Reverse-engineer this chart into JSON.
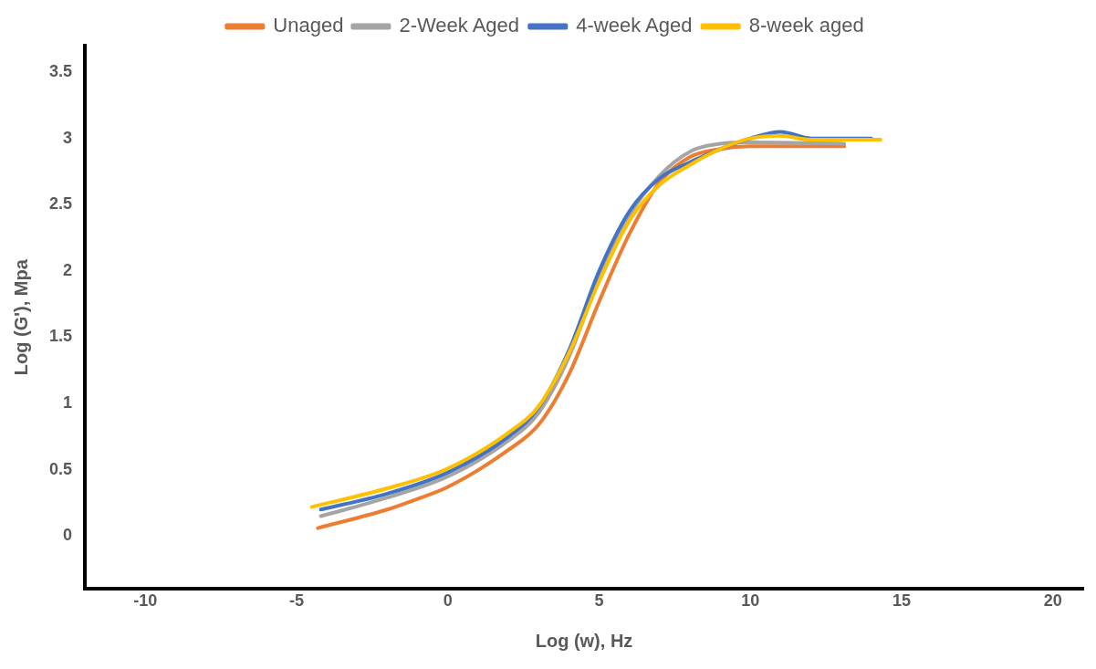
{
  "chart_data": {
    "type": "line",
    "xlabel": "Log (w), Hz",
    "ylabel": "Log (G'), Mpa",
    "legend": "top",
    "grid": false,
    "marker": "none",
    "line_style": "solid",
    "xlim": [
      -12,
      21
    ],
    "ylim": [
      -0.4,
      3.7
    ],
    "xticks": [
      -10,
      -5,
      0,
      5,
      10,
      15,
      20
    ],
    "yticks": [
      0,
      0.5,
      1,
      1.5,
      2,
      2.5,
      3,
      3.5
    ],
    "series": [
      {
        "name": "Unaged",
        "color": "#ed7d31",
        "x": [
          -4.3,
          -2,
          -1,
          0,
          2,
          3,
          4,
          5,
          6,
          7,
          8,
          9,
          10,
          13.1
        ],
        "values": [
          0.06,
          0.2,
          0.28,
          0.37,
          0.65,
          0.84,
          1.22,
          1.77,
          2.28,
          2.67,
          2.86,
          2.92,
          2.94,
          2.94
        ]
      },
      {
        "name": "2-Week Aged",
        "color": "#a5a5a5",
        "x": [
          -4.2,
          -2,
          0,
          2,
          3,
          4,
          5,
          6,
          7,
          8,
          9,
          10,
          13.1
        ],
        "values": [
          0.15,
          0.29,
          0.45,
          0.72,
          0.93,
          1.35,
          1.95,
          2.42,
          2.72,
          2.9,
          2.96,
          2.97,
          2.96
        ]
      },
      {
        "name": "4-week Aged",
        "color": "#4472c4",
        "x": [
          -4.2,
          -2,
          0,
          2,
          3,
          4,
          5,
          6,
          7,
          8,
          9,
          10,
          11,
          12,
          14
        ],
        "values": [
          0.2,
          0.32,
          0.48,
          0.75,
          0.97,
          1.4,
          2.0,
          2.45,
          2.7,
          2.82,
          2.92,
          3.0,
          3.05,
          3.0,
          3.0
        ]
      },
      {
        "name": "8-week aged",
        "color": "#ffc000",
        "x": [
          -4.5,
          -2,
          0,
          2,
          3,
          4,
          5,
          6,
          7,
          8,
          9,
          10,
          11,
          12,
          14.3
        ],
        "values": [
          0.22,
          0.36,
          0.51,
          0.78,
          0.98,
          1.38,
          1.92,
          2.38,
          2.65,
          2.8,
          2.92,
          3.0,
          3.02,
          2.99,
          2.99
        ]
      }
    ]
  }
}
